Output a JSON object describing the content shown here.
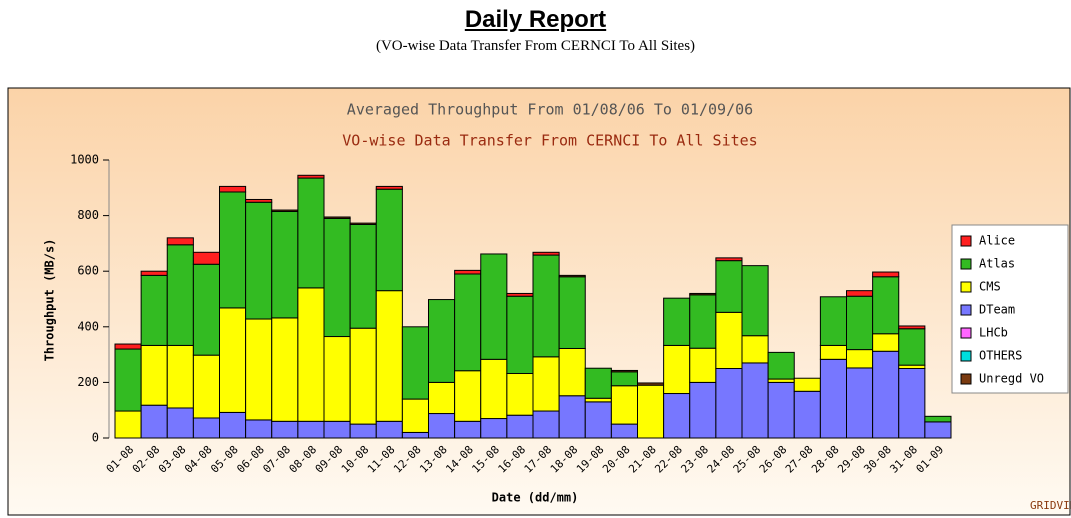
{
  "header": {
    "title": "Daily Report",
    "subtitle": "(VO-wise Data Transfer From CERNCI To All Sites)"
  },
  "chart_data": {
    "type": "stacked_bar",
    "title": "Averaged Throughput  From 01/08/06 To 01/09/06",
    "subtitle": "VO-wise Data Transfer  From CERNCI To All Sites",
    "x_label": "Date (dd/mm)",
    "y_label": "Throughput (MB/s)",
    "watermark": "GRIDVIEW",
    "categories": [
      "01-08",
      "02-08",
      "03-08",
      "04-08",
      "05-08",
      "06-08",
      "07-08",
      "08-08",
      "09-08",
      "10-08",
      "11-08",
      "12-08",
      "13-08",
      "14-08",
      "15-08",
      "16-08",
      "17-08",
      "18-08",
      "19-08",
      "20-08",
      "21-08",
      "22-08",
      "23-08",
      "24-08",
      "25-08",
      "26-08",
      "27-08",
      "28-08",
      "29-08",
      "30-08",
      "31-08",
      "01-09"
    ],
    "series": [
      {
        "name": "Alice",
        "color": "#ff2020",
        "values": [
          18,
          15,
          25,
          43,
          20,
          10,
          0,
          10,
          0,
          0,
          10,
          0,
          0,
          13,
          0,
          10,
          10,
          0,
          0,
          0,
          0,
          0,
          0,
          10,
          0,
          0,
          0,
          0,
          20,
          17,
          10,
          0
        ]
      },
      {
        "name": "Atlas",
        "color": "#33bb22",
        "values": [
          223,
          252,
          362,
          327,
          417,
          420,
          383,
          395,
          425,
          373,
          365,
          260,
          298,
          348,
          379,
          278,
          366,
          258,
          108,
          50,
          0,
          170,
          192,
          186,
          252,
          96,
          0,
          175,
          192,
          205,
          131,
          20
        ]
      },
      {
        "name": "CMS",
        "color": "#ffff00",
        "values": [
          97,
          215,
          225,
          226,
          376,
          363,
          372,
          480,
          305,
          345,
          470,
          120,
          112,
          182,
          213,
          150,
          195,
          170,
          13,
          138,
          190,
          173,
          123,
          202,
          98,
          12,
          47,
          50,
          66,
          63,
          12,
          0
        ]
      },
      {
        "name": "DTeam",
        "color": "#7777ff",
        "values": [
          0,
          118,
          108,
          72,
          92,
          65,
          60,
          60,
          60,
          50,
          60,
          20,
          88,
          60,
          70,
          82,
          97,
          152,
          130,
          50,
          0,
          160,
          200,
          250,
          270,
          200,
          168,
          283,
          252,
          312,
          250,
          58
        ]
      },
      {
        "name": "LHCb",
        "color": "#ff66ff",
        "values": [
          0,
          0,
          0,
          0,
          0,
          0,
          0,
          0,
          0,
          0,
          0,
          0,
          0,
          0,
          0,
          0,
          0,
          0,
          0,
          0,
          0,
          0,
          0,
          0,
          0,
          0,
          0,
          0,
          0,
          0,
          0,
          0
        ]
      },
      {
        "name": "OTHERS",
        "color": "#00dddd",
        "values": [
          0,
          0,
          0,
          0,
          0,
          0,
          0,
          0,
          0,
          0,
          0,
          0,
          0,
          0,
          0,
          0,
          0,
          0,
          0,
          0,
          0,
          0,
          0,
          0,
          0,
          0,
          0,
          0,
          0,
          0,
          0,
          0
        ]
      },
      {
        "name": "Unregd VO",
        "color": "#7a3a10",
        "values": [
          0,
          0,
          0,
          0,
          0,
          0,
          5,
          0,
          5,
          5,
          0,
          0,
          0,
          0,
          0,
          0,
          0,
          5,
          0,
          5,
          8,
          0,
          5,
          0,
          0,
          0,
          0,
          0,
          0,
          0,
          0,
          0
        ]
      }
    ],
    "ylim": [
      0,
      1000
    ],
    "yticks": [
      0,
      200,
      400,
      600,
      800,
      1000
    ],
    "legend": "right"
  }
}
